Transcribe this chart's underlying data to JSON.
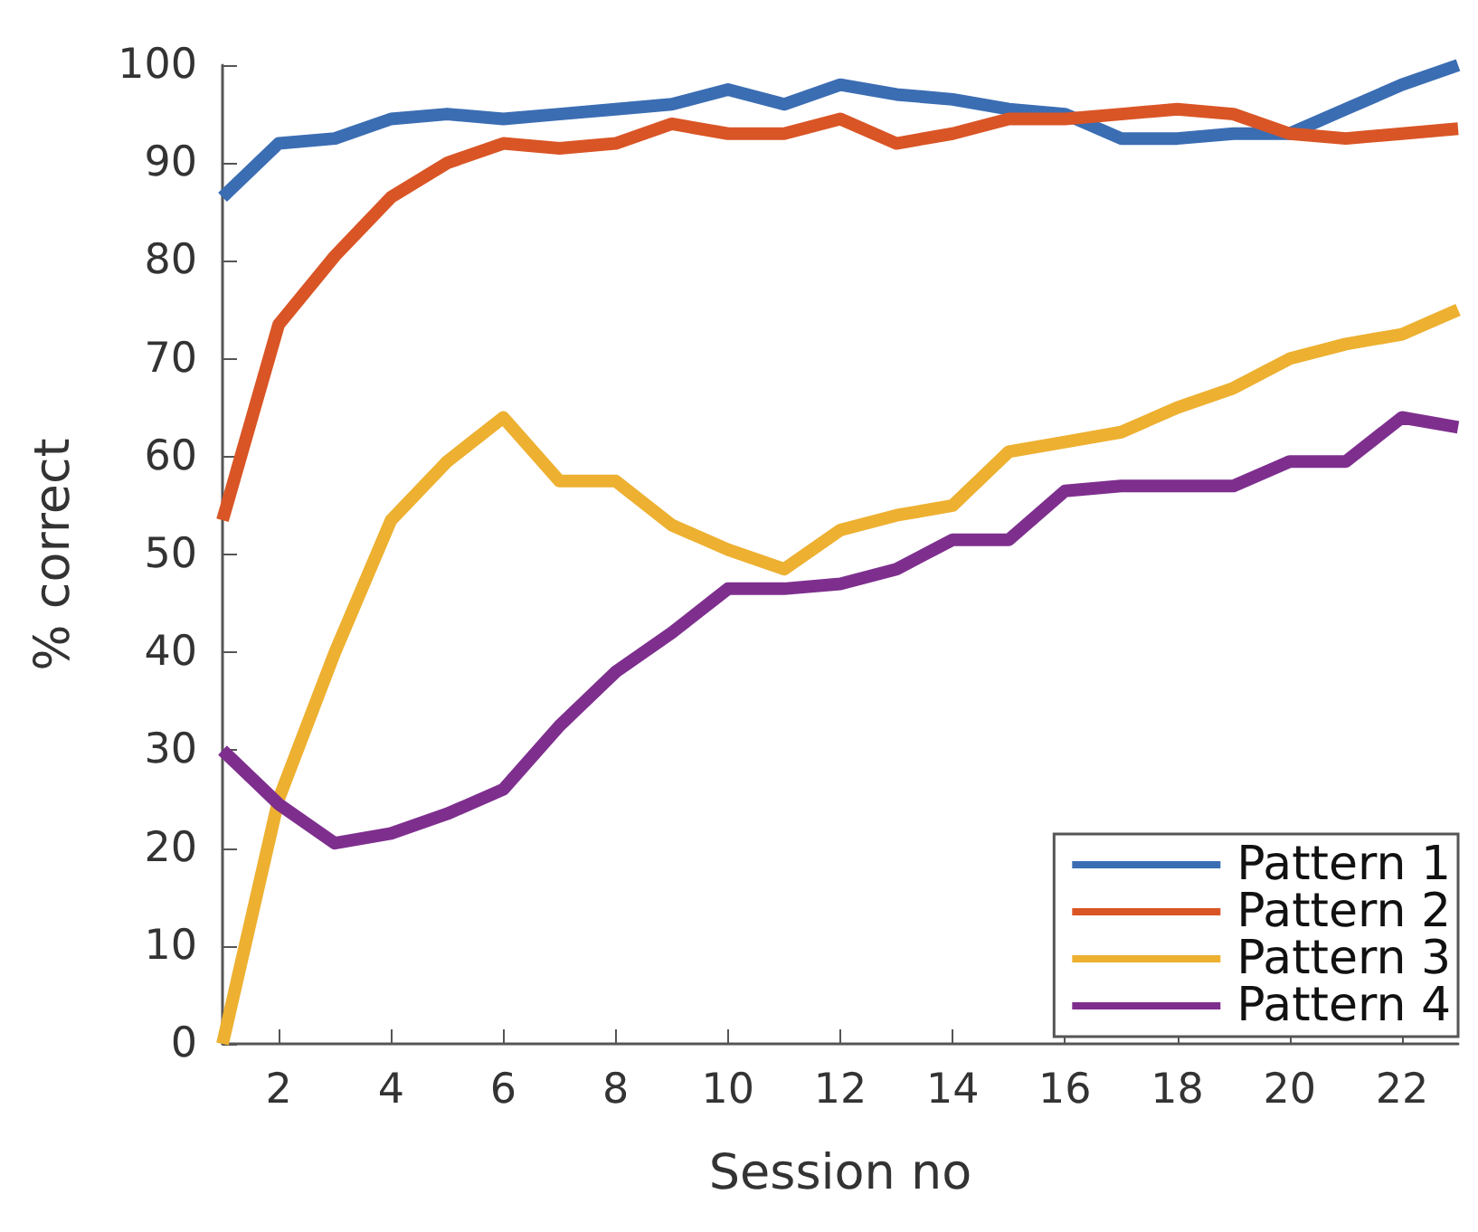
{
  "chart_data": {
    "type": "line",
    "xlabel": "Session no",
    "ylabel": "% correct",
    "x": [
      1,
      2,
      3,
      4,
      5,
      6,
      7,
      8,
      9,
      10,
      11,
      12,
      13,
      14,
      15,
      16,
      17,
      18,
      19,
      20,
      21,
      22,
      23
    ],
    "xlim": [
      1,
      23
    ],
    "xticks": [
      2,
      4,
      6,
      8,
      10,
      12,
      14,
      16,
      18,
      20,
      22
    ],
    "ylim": [
      0,
      100
    ],
    "yticks": [
      0,
      10,
      20,
      30,
      40,
      50,
      60,
      70,
      80,
      90,
      100
    ],
    "grid": false,
    "legend": "bottom right",
    "marker": "none",
    "line_style": "solid",
    "series": [
      {
        "name": "Pattern 1",
        "color": "#3b6db3",
        "values": [
          86.5,
          92,
          92.5,
          94.5,
          95,
          94.5,
          95,
          95.5,
          96,
          97.5,
          96,
          98,
          97,
          96.5,
          95.5,
          95,
          92.5,
          92.5,
          93,
          93,
          95.5,
          98,
          100
        ]
      },
      {
        "name": "Pattern 2",
        "color": "#d95526",
        "values": [
          53.5,
          73.5,
          80.5,
          86.5,
          90,
          92,
          91.5,
          92,
          94,
          93,
          93,
          94.5,
          92,
          93,
          94.5,
          94.5,
          95,
          95.5,
          95,
          93,
          92.5,
          93,
          93.5
        ]
      },
      {
        "name": "Pattern 3",
        "color": "#edb030",
        "values": [
          0,
          25,
          40,
          53.5,
          59.5,
          64,
          57.5,
          57.5,
          53,
          50.5,
          48.5,
          52.5,
          54,
          55,
          60.5,
          61.5,
          62.5,
          65,
          67,
          70,
          71.5,
          72.5,
          75
        ]
      },
      {
        "name": "Pattern 4",
        "color": "#7e2f8e",
        "values": [
          30,
          24.5,
          20.5,
          21.5,
          23.5,
          26,
          32.5,
          38,
          42,
          46.5,
          46.5,
          47,
          48.5,
          51.5,
          51.5,
          56.5,
          57,
          57,
          57,
          59.5,
          59.5,
          64,
          63
        ]
      }
    ]
  }
}
